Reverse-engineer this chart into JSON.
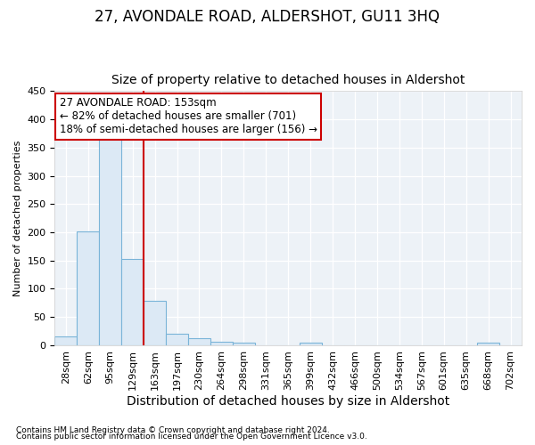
{
  "title": "27, AVONDALE ROAD, ALDERSHOT, GU11 3HQ",
  "subtitle": "Size of property relative to detached houses in Aldershot",
  "xlabel": "Distribution of detached houses by size in Aldershot",
  "ylabel": "Number of detached properties",
  "footer1": "Contains HM Land Registry data © Crown copyright and database right 2024.",
  "footer2": "Contains public sector information licensed under the Open Government Licence v3.0.",
  "bins": [
    "28sqm",
    "62sqm",
    "95sqm",
    "129sqm",
    "163sqm",
    "197sqm",
    "230sqm",
    "264sqm",
    "298sqm",
    "331sqm",
    "365sqm",
    "399sqm",
    "432sqm",
    "466sqm",
    "500sqm",
    "534sqm",
    "567sqm",
    "601sqm",
    "635sqm",
    "668sqm",
    "702sqm"
  ],
  "bar_heights": [
    16,
    201,
    367,
    153,
    78,
    20,
    13,
    7,
    5,
    0,
    0,
    4,
    0,
    0,
    0,
    0,
    0,
    0,
    0,
    4,
    0
  ],
  "bar_color": "#dce9f5",
  "bar_edge_color": "#7ab4d8",
  "vline_color": "#cc0000",
  "annotation_line1": "27 AVONDALE ROAD: 153sqm",
  "annotation_line2": "← 82% of detached houses are smaller (701)",
  "annotation_line3": "18% of semi-detached houses are larger (156) →",
  "annotation_box_color": "#cc0000",
  "ylim": [
    0,
    450
  ],
  "yticks": [
    0,
    50,
    100,
    150,
    200,
    250,
    300,
    350,
    400,
    450
  ],
  "bg_color": "#f0f4f8",
  "plot_bg_color": "#edf2f7",
  "title_fontsize": 12,
  "subtitle_fontsize": 10,
  "xlabel_fontsize": 10,
  "ylabel_fontsize": 8,
  "tick_fontsize": 8,
  "footer_fontsize": 6.5,
  "annotation_fontsize": 8.5
}
